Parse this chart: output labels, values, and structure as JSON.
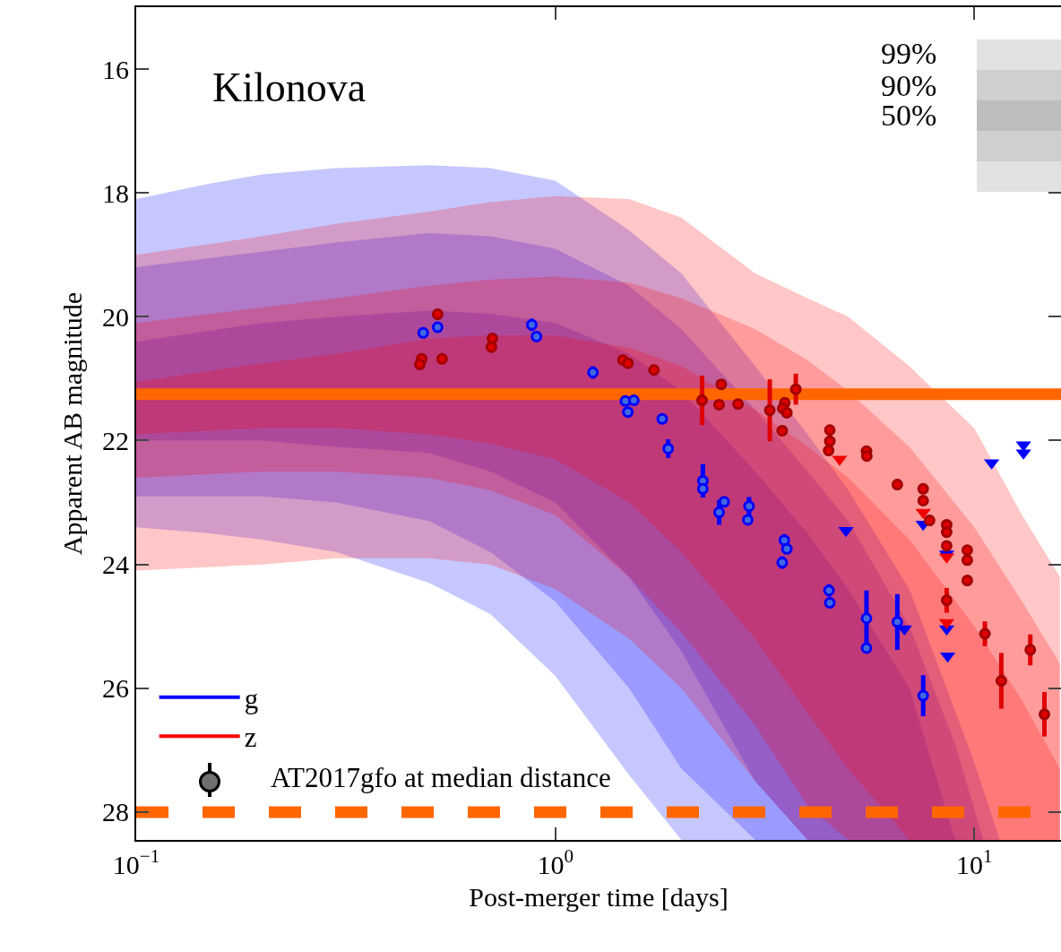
{
  "chart_data": {
    "type": "line",
    "xlabel": "Post-merger time [days]",
    "ylabel": "Apparent AB magnitude",
    "annotations": [
      "Kilonova",
      "99%",
      "90%",
      "50%",
      "AT2017gfo at median distance"
    ],
    "log": "x",
    "legend": "bottom left",
    "xlim": [
      0.1,
      16.1
    ],
    "ylim": [
      28.45,
      15
    ],
    "xticks": [
      {
        "value": 0.1,
        "label": "10$^{−1}$"
      },
      {
        "value": 1,
        "label": "10$^{0}$"
      },
      {
        "value": 10,
        "label": "10$^{1}$"
      }
    ],
    "yticks": [
      16,
      18,
      20,
      22,
      24,
      26,
      28
    ],
    "ref_lines": [
      {
        "axis": "y",
        "value": 21.25,
        "color": "#ff6600",
        "line_style": "solid"
      },
      {
        "axis": "y",
        "value": 28,
        "color": "#ff6600",
        "line_style": "dashed"
      }
    ],
    "series": [
      {
        "name": "g",
        "type": "line",
        "color": "#0000ff",
        "x": [
          0.1,
          0.15,
          0.2,
          0.3,
          0.5,
          0.7,
          1,
          1.5,
          2,
          3,
          4,
          5,
          7,
          10,
          11.5
        ],
        "values": [
          null,
          null,
          null,
          null,
          null,
          null,
          null,
          null,
          null,
          null,
          null,
          null,
          null,
          null,
          null
        ],
        "upper": [
          18.1,
          17.85,
          17.7,
          17.6,
          17.55,
          17.6,
          17.8,
          18.6,
          19.3,
          20.8,
          21.9,
          22.8,
          24.4,
          27.2,
          28.45
        ],
        "lower": [
          23.4,
          23.5,
          23.6,
          23.8,
          24.3,
          24.8,
          25.8,
          27.4,
          28.45,
          28.45,
          28.45,
          28.45,
          28.45,
          28.45,
          28.45
        ]
      },
      {
        "type": "line",
        "color": "#0000ff",
        "x": [
          0.1,
          0.2,
          0.3,
          0.5,
          0.7,
          1,
          1.5,
          2,
          3,
          4,
          5,
          7,
          9,
          10.5
        ],
        "values": [
          null,
          null,
          null,
          null,
          null,
          null,
          null,
          null,
          null,
          null,
          null,
          null,
          null,
          null
        ],
        "upper": [
          19.2,
          18.95,
          18.8,
          18.65,
          18.7,
          18.9,
          19.5,
          20.2,
          21.5,
          22.5,
          23.3,
          25.0,
          26.9,
          28.45
        ],
        "lower": [
          22.9,
          22.9,
          23.0,
          23.3,
          23.8,
          24.6,
          26.0,
          27.3,
          28.45,
          28.45,
          28.45,
          28.45,
          28.45,
          28.45
        ]
      },
      {
        "type": "line",
        "color": "#0000ff",
        "x": [
          0.1,
          0.2,
          0.3,
          0.5,
          0.7,
          1,
          1.5,
          2,
          3,
          4,
          5,
          7,
          9
        ],
        "values": [
          null,
          null,
          null,
          null,
          null,
          null,
          null,
          null,
          null,
          null,
          null,
          null,
          null
        ],
        "upper": [
          20.4,
          20.1,
          20.0,
          19.9,
          19.95,
          20.1,
          20.6,
          21.2,
          22.5,
          23.5,
          24.4,
          26.0,
          28.45
        ],
        "lower": [
          22.0,
          22.0,
          22.1,
          22.2,
          22.5,
          23.0,
          24.2,
          25.4,
          27.5,
          28.45,
          28.45,
          28.45,
          28.45
        ]
      },
      {
        "name": "z",
        "type": "line",
        "color": "#ff0000",
        "x": [
          0.1,
          0.2,
          0.3,
          0.5,
          0.7,
          1,
          1.5,
          2,
          3,
          4,
          5,
          7,
          10,
          13,
          16
        ],
        "values": [
          null,
          null,
          null,
          null,
          null,
          null,
          null,
          null,
          null,
          null,
          null,
          null,
          null,
          null,
          null
        ],
        "upper": [
          19.0,
          18.7,
          18.5,
          18.3,
          18.15,
          18.05,
          18.1,
          18.4,
          19.3,
          19.7,
          20.0,
          20.8,
          21.8,
          23.2,
          24.2
        ],
        "lower": [
          24.1,
          24.0,
          23.9,
          23.9,
          24.0,
          24.4,
          25.2,
          26.0,
          27.5,
          28.45,
          28.45,
          28.45,
          28.45,
          28.45,
          28.45
        ]
      },
      {
        "type": "line",
        "color": "#ff0000",
        "x": [
          0.1,
          0.2,
          0.3,
          0.5,
          0.7,
          1,
          1.5,
          2,
          3,
          4,
          5,
          7,
          10,
          13,
          16
        ],
        "values": [
          null,
          null,
          null,
          null,
          null,
          null,
          null,
          null,
          null,
          null,
          null,
          null,
          null,
          null,
          null
        ],
        "upper": [
          20.1,
          19.85,
          19.7,
          19.5,
          19.4,
          19.35,
          19.45,
          19.7,
          20.2,
          20.7,
          21.2,
          22.1,
          23.4,
          24.6,
          25.6
        ],
        "lower": [
          22.6,
          22.5,
          22.5,
          22.6,
          22.8,
          23.2,
          24.2,
          25.1,
          26.6,
          27.9,
          28.45,
          28.45,
          28.45,
          28.45,
          28.45
        ]
      },
      {
        "type": "line",
        "color": "#ff0000",
        "x": [
          0.1,
          0.2,
          0.3,
          0.5,
          0.7,
          1,
          1.5,
          2,
          3,
          4,
          5,
          7,
          10,
          13,
          16
        ],
        "values": [
          null,
          null,
          null,
          null,
          null,
          null,
          null,
          null,
          null,
          null,
          null,
          null,
          null,
          null,
          null
        ],
        "upper": [
          21.05,
          20.75,
          20.6,
          20.35,
          20.3,
          20.3,
          20.5,
          20.8,
          21.5,
          22.1,
          22.6,
          23.6,
          25.0,
          26.2,
          27.3
        ],
        "lower": [
          21.9,
          21.8,
          21.8,
          21.9,
          22.05,
          22.3,
          23.0,
          23.8,
          25.2,
          26.4,
          27.3,
          28.45,
          28.45,
          28.45,
          28.45
        ]
      },
      {
        "type": "scatter",
        "marker": "circle",
        "color": "#0000ff",
        "x": [
          0.484,
          0.524,
          0.879,
          0.902,
          1.23,
          1.47,
          1.49,
          1.54,
          1.8,
          1.86,
          2.25,
          2.25,
          2.46,
          2.53,
          2.9,
          2.88,
          3.52,
          3.57,
          3.48,
          4.5,
          4.52,
          5.53,
          5.53,
          6.55,
          7.55
        ],
        "values": [
          20.26,
          20.17,
          20.13,
          20.32,
          20.9,
          21.36,
          21.54,
          21.35,
          21.65,
          22.13,
          22.65,
          22.78,
          23.16,
          22.99,
          23.06,
          23.28,
          23.61,
          23.75,
          23.97,
          24.42,
          24.62,
          24.87,
          25.35,
          24.93,
          26.12
        ],
        "errors": [
          null,
          null,
          0.1,
          null,
          0.1,
          null,
          null,
          null,
          null,
          0.15,
          0.27,
          null,
          0.2,
          null,
          0.15,
          null,
          0.1,
          null,
          0.1,
          0.1,
          null,
          0.45,
          null,
          0.45,
          0.33
        ]
      },
      {
        "type": "scatter",
        "marker": "triangle",
        "color": "#0000ff",
        "x": [
          4.94,
          7.55,
          8.59,
          6.81,
          8.59,
          8.64,
          11.0,
          13.1,
          13.1
        ],
        "values": [
          23.45,
          23.35,
          23.83,
          25.04,
          25.04,
          25.48,
          22.36,
          22.07,
          22.2
        ]
      },
      {
        "type": "scatter",
        "marker": "circle",
        "color": "#e00000",
        "x": [
          0.524,
          0.48,
          0.475,
          0.537,
          0.708,
          0.704,
          1.45,
          1.49,
          1.72,
          2.24,
          2.49,
          2.46,
          2.73,
          3.25,
          3.75,
          3.53,
          3.49,
          3.57,
          3.48,
          4.52,
          4.52,
          4.49,
          5.53,
          5.54,
          6.55,
          7.55,
          7.55,
          7.82,
          8.59,
          8.59,
          8.59,
          9.62,
          9.62,
          9.62,
          8.59,
          10.6,
          11.6,
          13.6,
          14.7
        ],
        "values": [
          19.96,
          20.68,
          20.77,
          20.68,
          20.35,
          20.49,
          20.7,
          20.75,
          20.86,
          21.35,
          21.09,
          21.42,
          21.41,
          21.51,
          21.17,
          21.39,
          21.48,
          21.55,
          21.84,
          21.83,
          22.01,
          22.16,
          22.17,
          22.25,
          22.71,
          22.78,
          22.97,
          23.29,
          23.36,
          23.48,
          23.7,
          23.77,
          23.93,
          24.26,
          24.58,
          25.12,
          25.88,
          25.38,
          26.42
        ],
        "errors": [
          null,
          null,
          null,
          null,
          null,
          null,
          null,
          null,
          null,
          0.4,
          null,
          null,
          null,
          0.5,
          0.25,
          null,
          null,
          null,
          null,
          null,
          null,
          null,
          null,
          null,
          null,
          null,
          null,
          null,
          null,
          null,
          null,
          null,
          null,
          null,
          0.2,
          0.2,
          0.45,
          0.25,
          0.36
        ]
      },
      {
        "type": "scatter",
        "marker": "triangle",
        "color": "#f00000",
        "x": [
          4.77,
          7.55,
          8.59,
          8.59
        ],
        "values": [
          22.3,
          23.16,
          23.88,
          24.94
        ]
      }
    ]
  }
}
